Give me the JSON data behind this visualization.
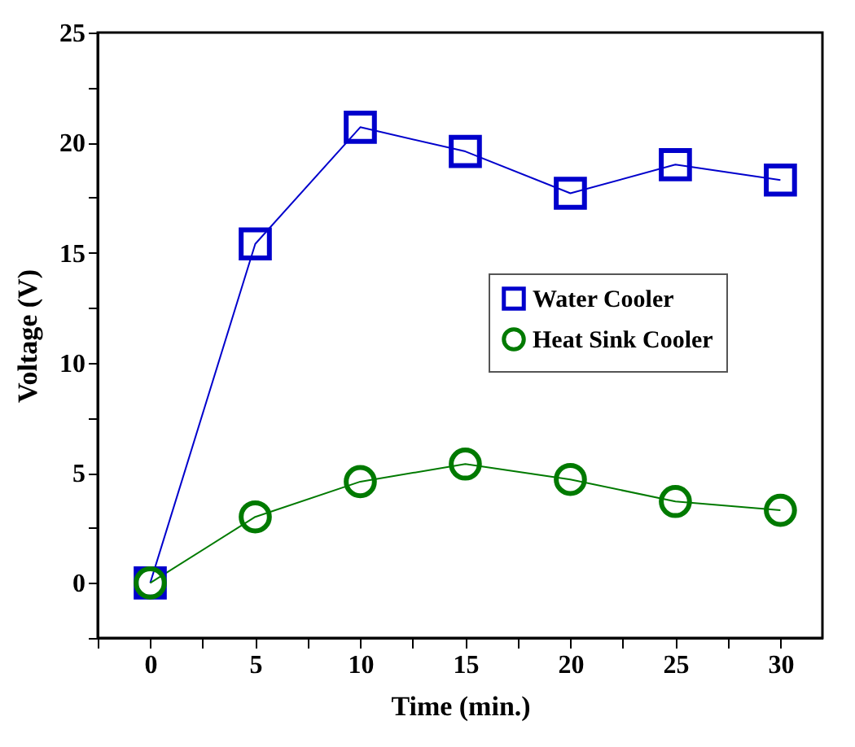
{
  "chart_data": {
    "type": "line",
    "xlabel": "Time (min.)",
    "ylabel": "Voltage (V)",
    "x": [
      0,
      5,
      10,
      15,
      20,
      25,
      30
    ],
    "series": [
      {
        "name": "Water Cooler",
        "color": "#0000cc",
        "marker": "square",
        "values": [
          0,
          15.4,
          20.7,
          19.6,
          17.7,
          19.0,
          18.3
        ]
      },
      {
        "name": "Heat Sink Cooler",
        "color": "#007a00",
        "marker": "circle",
        "values": [
          0,
          3.0,
          4.6,
          5.4,
          4.7,
          3.7,
          3.3
        ]
      }
    ],
    "xlim": [
      -2.5,
      32
    ],
    "ylim": [
      -2.5,
      25
    ],
    "xticks": [
      {
        "value": -2.5,
        "label": null
      },
      0,
      {
        "value": 2.5,
        "label": null
      },
      5,
      {
        "value": 7.5,
        "label": null
      },
      10,
      {
        "value": 12.5,
        "label": null
      },
      15,
      {
        "value": 17.5,
        "label": null
      },
      20,
      {
        "value": 22.5,
        "label": null
      },
      25,
      {
        "value": 27.5,
        "label": null
      },
      30
    ],
    "yticks": [
      {
        "value": -2.5,
        "label": null
      },
      0,
      {
        "value": 2.5,
        "label": null
      },
      5,
      {
        "value": 7.5,
        "label": null
      },
      10,
      {
        "value": 12.5,
        "label": null
      },
      15,
      {
        "value": 17.5,
        "label": null
      },
      20,
      {
        "value": 22.5,
        "label": null
      },
      25
    ],
    "grid": false,
    "legend": "right",
    "line_style": "solid"
  }
}
